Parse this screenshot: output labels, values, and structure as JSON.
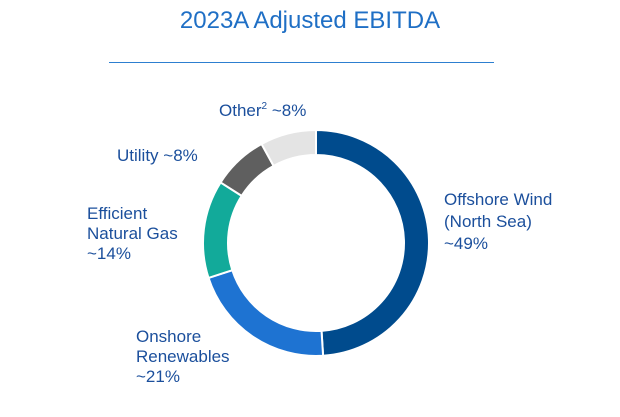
{
  "title": "2023A Adjusted EBITDA",
  "chart_data": {
    "type": "pie",
    "variant": "donut",
    "slices": [
      {
        "name": "Offshore Wind (North Sea)",
        "label_lines": [
          "Offshore Wind",
          "(North Sea)",
          "~49%"
        ],
        "value": 49,
        "color": "#004b8d"
      },
      {
        "name": "Onshore Renewables",
        "label_lines": [
          "Onshore",
          "Renewables",
          "~21%"
        ],
        "value": 21,
        "color": "#1e73d2"
      },
      {
        "name": "Efficient Natural Gas",
        "label_lines": [
          "Efficient",
          "Natural Gas",
          "~14%"
        ],
        "value": 14,
        "color": "#12aa9a"
      },
      {
        "name": "Utility",
        "label_lines": [
          "Utility ~8%"
        ],
        "value": 8,
        "color": "#5f5f5f"
      },
      {
        "name": "Other",
        "label_lines": [
          "Other",
          "2",
          " ~8%"
        ],
        "value": 8,
        "color": "#e4e4e4"
      }
    ]
  }
}
